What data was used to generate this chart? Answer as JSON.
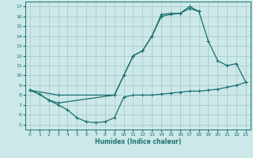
{
  "xlabel": "Humidex (Indice chaleur)",
  "xlim": [
    -0.5,
    23.5
  ],
  "ylim": [
    4.5,
    17.5
  ],
  "xticks": [
    0,
    1,
    2,
    3,
    4,
    5,
    6,
    7,
    8,
    9,
    10,
    11,
    12,
    13,
    14,
    15,
    16,
    17,
    18,
    19,
    20,
    21,
    22,
    23
  ],
  "yticks": [
    5,
    6,
    7,
    8,
    9,
    10,
    11,
    12,
    13,
    14,
    15,
    16,
    17
  ],
  "bg_color": "#cce8e8",
  "grid_color": "#aacccc",
  "line_color": "#1a7070",
  "curves": [
    {
      "x": [
        0,
        1,
        2,
        3,
        9,
        10,
        11,
        12,
        13,
        14,
        15,
        16,
        17,
        18
      ],
      "y": [
        8.5,
        8.1,
        7.5,
        7.2,
        8.0,
        10.0,
        12.0,
        12.5,
        14.0,
        16.0,
        16.2,
        16.3,
        17.0,
        16.5
      ]
    },
    {
      "x": [
        0,
        1,
        2,
        3,
        4,
        5,
        6,
        7,
        8,
        9,
        10,
        11,
        12,
        13,
        14,
        15,
        16,
        17,
        18,
        19,
        20,
        21,
        22,
        23
      ],
      "y": [
        8.5,
        8.1,
        7.5,
        7.0,
        6.5,
        5.7,
        5.3,
        5.2,
        5.3,
        5.7,
        7.8,
        8.0,
        8.0,
        8.0,
        8.1,
        8.2,
        8.3,
        8.4,
        8.4,
        8.5,
        8.6,
        8.8,
        9.0,
        9.3
      ]
    },
    {
      "x": [
        0,
        3,
        9,
        10,
        11,
        12,
        13,
        14,
        15,
        16,
        17,
        18,
        19,
        20,
        21,
        22,
        23
      ],
      "y": [
        8.5,
        8.0,
        8.0,
        10.0,
        12.0,
        12.5,
        14.0,
        16.2,
        16.3,
        16.3,
        16.8,
        16.5,
        13.5,
        11.5,
        11.0,
        11.2,
        9.3
      ]
    }
  ]
}
